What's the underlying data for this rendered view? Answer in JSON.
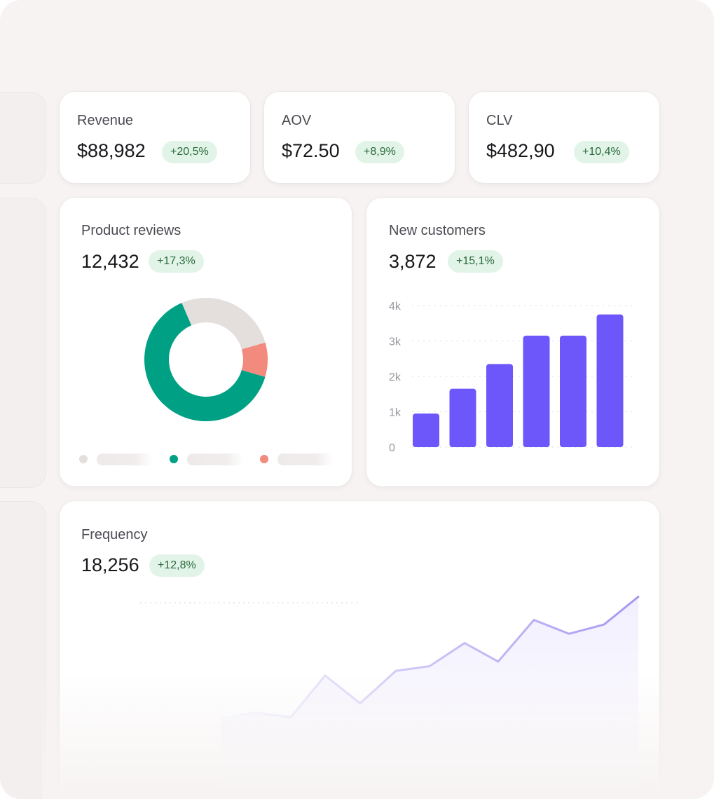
{
  "kpis": [
    {
      "label": "Revenue",
      "value": "$88,982",
      "change": "+20,5%"
    },
    {
      "label": "AOV",
      "value": "$72.50",
      "change": "+8,9%"
    },
    {
      "label": "CLV",
      "value": "$482,90",
      "change": "+10,4%"
    }
  ],
  "reviews": {
    "label": "Product reviews",
    "value": "12,432",
    "change": "+17,3%"
  },
  "customers": {
    "label": "New customers",
    "value": "3,872",
    "change": "+15,1%"
  },
  "frequency": {
    "label": "Frequency",
    "value": "18,256",
    "change": "+12,8%"
  },
  "colors": {
    "accent_purple": "#6e57fa",
    "teal": "#00a085",
    "salmon": "#f28b7e",
    "neutral": "#e4dfdc",
    "badge_bg": "#e2f4e7",
    "badge_text": "#2a6a3c"
  },
  "chart_data": [
    {
      "type": "pie",
      "variant": "donut",
      "values": [
        0.27,
        0.09,
        0.64
      ],
      "colors": [
        "#e4dfdc",
        "#f28b7e",
        "#00a085"
      ]
    },
    {
      "type": "bar",
      "categories": [
        "",
        "",
        "",
        "",
        "",
        ""
      ],
      "values": [
        950,
        1650,
        2350,
        3150,
        3150,
        3750
      ],
      "yticks": [
        "0",
        "1k",
        "2k",
        "3k",
        "4k"
      ],
      "ylim": [
        0,
        4000
      ],
      "color": "#6e57fa"
    },
    {
      "type": "area",
      "values": [
        3,
        4,
        3,
        12,
        6,
        13,
        14,
        19,
        15,
        24,
        21,
        23,
        29
      ],
      "ylim": [
        0,
        33
      ],
      "color": "#b4a6f2"
    }
  ]
}
